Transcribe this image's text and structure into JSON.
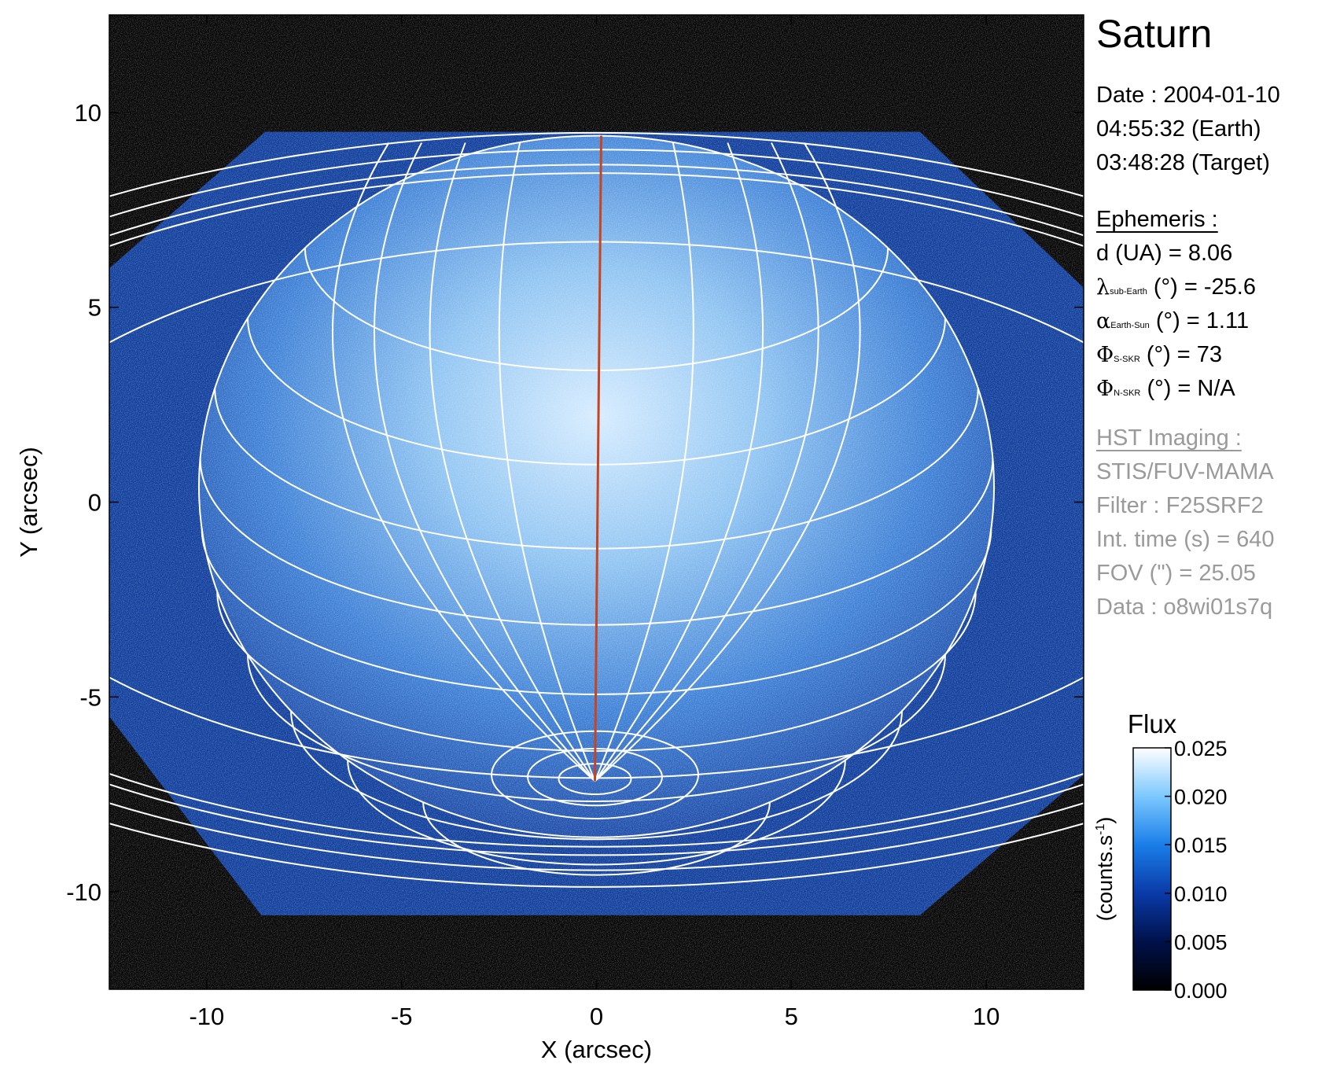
{
  "panel": {
    "title": "Saturn",
    "date_lines": [
      "Date : 2004-01-10",
      "04:55:32 (Earth)",
      "03:48:28 (Target)"
    ],
    "ephemeris_header": "Ephemeris :",
    "ephemeris": [
      {
        "symbol": "",
        "sub": "",
        "label": "d (UA)",
        "value": "=  8.06"
      },
      {
        "symbol": "λ",
        "sub": "sub-Earth",
        "label": "(°)",
        "value": "= -25.6"
      },
      {
        "symbol": "α",
        "sub": "Earth-Sun",
        "label": "(°)",
        "value": "= 1.11"
      },
      {
        "symbol": "Φ",
        "sub": "S-SKR",
        "label": "(°)",
        "value": "=  73"
      },
      {
        "symbol": "Φ",
        "sub": "N-SKR",
        "label": "(°)",
        "value": "=  N/A"
      }
    ],
    "hst_header": "HST Imaging :",
    "hst_lines": [
      "STIS/FUV-MAMA",
      "Filter : F25SRF2",
      "Int. time (s) = 640",
      "FOV (\") = 25.05",
      "Data : o8wi01s7q"
    ]
  },
  "chart_data": {
    "type": "heatmap",
    "xlabel": "X (arcsec)",
    "ylabel": "Y (arcsec)",
    "xlim": [
      -12.5,
      12.5
    ],
    "ylim": [
      -12.5,
      12.5
    ],
    "x_ticks": [
      -10,
      -5,
      0,
      5,
      10
    ],
    "y_ticks": [
      -10,
      -5,
      0,
      5,
      10
    ],
    "colorbar": {
      "title": "Flux",
      "label": "(counts.s",
      "label_sup": "-1",
      "label_close": ")",
      "range": [
        0.0,
        0.025
      ],
      "ticks": [
        "0.000",
        "0.005",
        "0.010",
        "0.015",
        "0.020",
        "0.025"
      ],
      "colors": [
        "#000000",
        "#00114a",
        "#0a3aa8",
        "#1a7ee8",
        "#7cc8ff",
        "#ffffff"
      ]
    },
    "planet": {
      "center_x": 0.0,
      "center_y": 0.4,
      "radius_eq": 10.2,
      "radius_pol": 9.0
    },
    "rings": {
      "center_x": 0.0,
      "center_y": -0.2,
      "tilt_ratio": 0.43,
      "radii": [
        22.5,
        21.5,
        20.6,
        20.1,
        16.0
      ]
    },
    "colors": {
      "background": "#000000",
      "grid": "#ffffff",
      "central_meridian": "#c8441e"
    }
  }
}
